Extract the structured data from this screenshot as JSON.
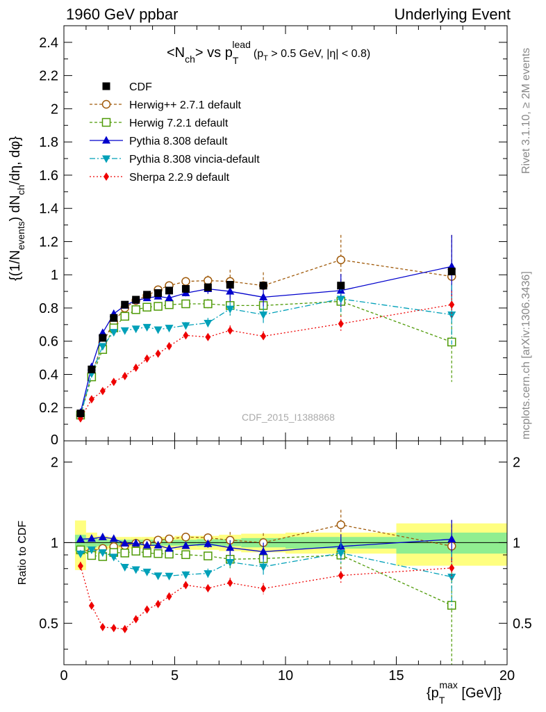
{
  "header": {
    "left": "1960 GeV ppbar",
    "right": "Underlying Event"
  },
  "side": {
    "rivet": "Rivet 3.1.10, ≥ 2M events",
    "mcplots": "mcplots.cern.ch [arXiv:1306.3436]"
  },
  "title": {
    "main": "<N",
    "ch": "ch",
    "vs": "> vs p",
    "lead": "lead",
    "T": "T",
    "cut_open": "(p",
    "cut_T": "T",
    "cut_rest": " > 0.5 GeV, |η| < 0.8)"
  },
  "watermark": "CDF_2015_I1388868",
  "axes": {
    "ylabel_main": "{(1/N",
    "ylabel_events": "events",
    "ylabel_mid": ") dN",
    "ylabel_ch": "ch",
    "ylabel_end": "/dη, dφ}",
    "ylabel_ratio": "Ratio to CDF",
    "xlabel_open": "{p",
    "xlabel_T": "T",
    "xlabel_max": "max",
    "xlabel_close": " [GeV]}"
  },
  "legend": [
    {
      "label": "CDF",
      "color": "#000000",
      "marker": "square"
    },
    {
      "label": "Herwig++ 2.7.1 default",
      "color": "#a05a0a",
      "marker": "circle-open"
    },
    {
      "label": "Herwig 7.2.1 default",
      "color": "#4e9a06",
      "marker": "square-open"
    },
    {
      "label": "Pythia 8.308 default",
      "color": "#0000cc",
      "marker": "triangle-up"
    },
    {
      "label": "Pythia 8.308 vincia-default",
      "color": "#00a0b8",
      "marker": "triangle-down"
    },
    {
      "label": "Sherpa 2.2.9 default",
      "color": "#ee0000",
      "marker": "diamond"
    }
  ],
  "chart_data": {
    "type": "scatter",
    "x_edges": [
      0.5,
      1,
      1.5,
      2,
      2.5,
      3,
      3.5,
      4,
      4.5,
      5,
      6,
      7,
      8,
      10,
      15,
      20
    ],
    "x": [
      0.75,
      1.25,
      1.75,
      2.25,
      2.75,
      3.25,
      3.75,
      4.25,
      4.75,
      5.5,
      6.5,
      7.5,
      9.0,
      12.5,
      17.5
    ],
    "xlim": [
      0,
      20
    ],
    "xticks": [
      0,
      5,
      10,
      15,
      20
    ],
    "ylim": [
      0,
      2.5
    ],
    "yticks": [
      0.2,
      0.4,
      0.6,
      0.8,
      1,
      1.2,
      1.4,
      1.6,
      1.8,
      2,
      2.2,
      2.4
    ],
    "ytick_labels": [
      "0.2",
      "0.4",
      "0.6",
      "0.8",
      "1",
      "1.2",
      "1.4",
      "1.6",
      "1.8",
      "2",
      "2.2",
      "2.4"
    ],
    "ytick_zero_label": "0",
    "ratio_ylim": [
      0.35,
      2.4
    ],
    "ratio_yticks": [
      0.5,
      1,
      2
    ],
    "ratio_ytick_labels": [
      "0.5",
      "1",
      "2"
    ],
    "data": {
      "name": "CDF",
      "values": [
        0.165,
        0.43,
        0.62,
        0.74,
        0.82,
        0.85,
        0.88,
        0.89,
        0.905,
        0.915,
        0.925,
        0.94,
        0.935,
        0.935,
        1.02
      ],
      "band_inner": [
        0.07,
        0.04,
        0.03,
        0.025,
        0.025,
        0.025,
        0.025,
        0.025,
        0.025,
        0.025,
        0.03,
        0.03,
        0.04,
        0.05,
        0.09
      ],
      "band_outer": [
        0.21,
        0.09,
        0.06,
        0.05,
        0.05,
        0.05,
        0.05,
        0.05,
        0.05,
        0.06,
        0.06,
        0.07,
        0.08,
        0.09,
        0.18
      ]
    },
    "series": [
      {
        "name": "Herwig++ 2.7.1 default",
        "values": [
          0.155,
          0.4,
          0.59,
          0.715,
          0.8,
          0.845,
          0.875,
          0.91,
          0.935,
          0.96,
          0.965,
          0.96,
          0.935,
          1.09,
          0.99
        ],
        "err": [
          0.005,
          0.005,
          0.005,
          0.006,
          0.007,
          0.008,
          0.009,
          0.01,
          0.012,
          0.02,
          0.03,
          0.07,
          0.08,
          0.15,
          0.25
        ]
      },
      {
        "name": "Herwig 7.2.1 default",
        "values": [
          0.155,
          0.385,
          0.55,
          0.68,
          0.75,
          0.79,
          0.805,
          0.81,
          0.82,
          0.825,
          0.825,
          0.815,
          0.815,
          0.84,
          0.595
        ],
        "err": [
          0.005,
          0.005,
          0.005,
          0.006,
          0.007,
          0.008,
          0.009,
          0.01,
          0.012,
          0.02,
          0.03,
          0.06,
          0.07,
          0.1,
          0.24
        ]
      },
      {
        "name": "Pythia 8.308 default",
        "values": [
          0.17,
          0.445,
          0.65,
          0.765,
          0.815,
          0.845,
          0.86,
          0.87,
          0.86,
          0.89,
          0.915,
          0.9,
          0.865,
          0.905,
          1.05
        ],
        "err": [
          0.005,
          0.005,
          0.005,
          0.006,
          0.007,
          0.008,
          0.009,
          0.01,
          0.012,
          0.02,
          0.03,
          0.06,
          0.07,
          0.1,
          0.19
        ]
      },
      {
        "name": "Pythia 8.308 vincia-default",
        "values": [
          0.15,
          0.405,
          0.57,
          0.655,
          0.665,
          0.675,
          0.685,
          0.67,
          0.68,
          0.695,
          0.71,
          0.795,
          0.76,
          0.855,
          0.76
        ],
        "err": [
          0.005,
          0.005,
          0.005,
          0.006,
          0.007,
          0.008,
          0.009,
          0.01,
          0.012,
          0.02,
          0.03,
          0.04,
          0.05,
          0.08,
          0.18
        ]
      },
      {
        "name": "Sherpa 2.2.9 default",
        "values": [
          0.135,
          0.25,
          0.3,
          0.355,
          0.39,
          0.44,
          0.495,
          0.525,
          0.57,
          0.635,
          0.625,
          0.665,
          0.63,
          0.705,
          0.82
        ],
        "err": [
          0.005,
          0.005,
          0.006,
          0.007,
          0.008,
          0.009,
          0.01,
          0.012,
          0.015,
          0.02,
          0.02,
          0.03,
          0.03,
          0.05,
          0.08
        ]
      }
    ]
  }
}
